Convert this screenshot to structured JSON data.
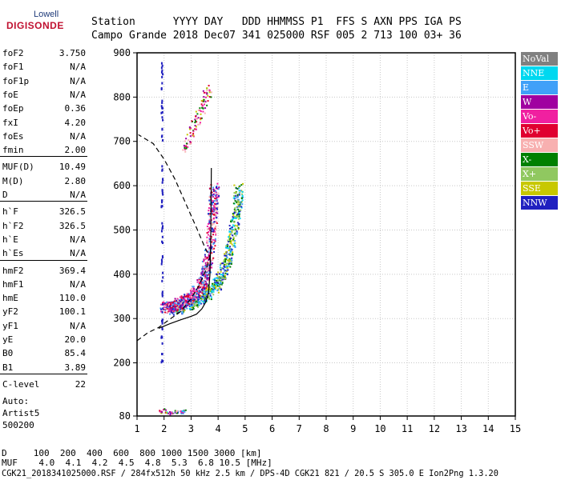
{
  "logo": {
    "top": "Lowell",
    "main": "DIGISONDE"
  },
  "header": {
    "line1": "Station      YYYY DAY   DDD HHMMSS P1  FFS S AXN PPS IGA PS",
    "line2": "Campo Grande 2018 Dec07 341 025000 RSF 005 2 713 100 03+ 36"
  },
  "params": [
    {
      "name": "foF2",
      "value": "3.750"
    },
    {
      "name": "foF1",
      "value": "N/A"
    },
    {
      "name": "foF1p",
      "value": "N/A"
    },
    {
      "name": "foE",
      "value": "N/A"
    },
    {
      "name": "foEp",
      "value": "0.36"
    },
    {
      "name": "fxI",
      "value": "4.20"
    },
    {
      "name": "foEs",
      "value": "N/A"
    },
    {
      "name": "fmin",
      "value": "2.00"
    },
    {
      "name": "MUF(D)",
      "value": "10.49"
    },
    {
      "name": "M(D)",
      "value": "2.80"
    },
    {
      "name": "D",
      "value": "N/A"
    },
    {
      "name": "h`F",
      "value": "326.5"
    },
    {
      "name": "h`F2",
      "value": "326.5"
    },
    {
      "name": "h`E",
      "value": "N/A"
    },
    {
      "name": "h`Es",
      "value": "N/A"
    },
    {
      "name": "hmF2",
      "value": "369.4"
    },
    {
      "name": "hmF1",
      "value": "N/A"
    },
    {
      "name": "hmE",
      "value": "110.0"
    },
    {
      "name": "yF2",
      "value": "100.1"
    },
    {
      "name": "yF1",
      "value": "N/A"
    },
    {
      "name": "yE",
      "value": "20.0"
    },
    {
      "name": "B0",
      "value": "85.4"
    },
    {
      "name": "B1",
      "value": "3.89"
    },
    {
      "name": "C-level",
      "value": "22"
    }
  ],
  "auto": {
    "line1": "Auto:",
    "line2": "Artist5",
    "line3": "500200"
  },
  "legend": [
    {
      "label": "NoVal",
      "color": "#808080"
    },
    {
      "label": "NNE",
      "color": "#00d8f0"
    },
    {
      "label": "E",
      "color": "#40a0f8"
    },
    {
      "label": "W",
      "color": "#a000a0"
    },
    {
      "label": "Vo-",
      "color": "#f020a0"
    },
    {
      "label": "Vo+",
      "color": "#e00030"
    },
    {
      "label": "SSW",
      "color": "#f8b0b0"
    },
    {
      "label": "X-",
      "color": "#008000"
    },
    {
      "label": "X+",
      "color": "#90c860"
    },
    {
      "label": "SSE",
      "color": "#c8c800"
    },
    {
      "label": "NNW",
      "color": "#2020c0"
    }
  ],
  "footer": {
    "line1": "D     100  200  400  600  800 1000 1500 3000 [km]",
    "line2": "MUF    4.0  4.1  4.2  4.5  4.8  5.3  6.8 10.5 [MHz]",
    "line3": "CGK21_2018341025000.RSF / 284fx512h 50 kHz 2.5 km / DPS-4D CGK21 821 / 20.5 S 305.0 E Ion2Png 1.3.20"
  },
  "chart_data": {
    "type": "scatter",
    "xlim": [
      1,
      15
    ],
    "ylim": [
      80,
      900
    ],
    "xticks": [
      1,
      2,
      3,
      4,
      5,
      6,
      7,
      8,
      9,
      10,
      11,
      12,
      13,
      14,
      15
    ],
    "yticks": [
      80,
      200,
      300,
      400,
      500,
      600,
      700,
      800,
      900
    ],
    "grid": true,
    "profile_solid": [
      [
        1.8,
        278
      ],
      [
        2.2,
        288
      ],
      [
        2.6,
        297
      ],
      [
        3.0,
        305
      ],
      [
        3.2,
        310
      ],
      [
        3.4,
        322
      ],
      [
        3.55,
        338
      ],
      [
        3.65,
        360
      ],
      [
        3.7,
        400
      ],
      [
        3.73,
        480
      ],
      [
        3.75,
        640
      ]
    ],
    "profile_dashed": [
      [
        1.0,
        250
      ],
      [
        1.4,
        268
      ],
      [
        1.8,
        280
      ],
      [
        2.2,
        298
      ],
      [
        2.6,
        315
      ],
      [
        3.0,
        345
      ],
      [
        3.3,
        375
      ],
      [
        3.55,
        410
      ],
      [
        3.7,
        440
      ],
      [
        3.55,
        455
      ],
      [
        3.2,
        505
      ],
      [
        2.8,
        560
      ],
      [
        2.4,
        615
      ],
      [
        2.0,
        660
      ],
      [
        1.6,
        695
      ],
      [
        1.05,
        715
      ]
    ],
    "trace_o": [
      [
        2.0,
        325
      ],
      [
        2.2,
        328
      ],
      [
        2.4,
        331
      ],
      [
        2.6,
        336
      ],
      [
        2.8,
        342
      ],
      [
        3.0,
        350
      ],
      [
        3.2,
        362
      ],
      [
        3.4,
        382
      ],
      [
        3.5,
        400
      ],
      [
        3.6,
        428
      ],
      [
        3.7,
        470
      ],
      [
        3.75,
        520
      ],
      [
        3.8,
        560
      ],
      [
        3.85,
        600
      ]
    ],
    "trace_x": [
      [
        2.3,
        322
      ],
      [
        2.6,
        326
      ],
      [
        2.9,
        332
      ],
      [
        3.2,
        340
      ],
      [
        3.5,
        352
      ],
      [
        3.8,
        368
      ],
      [
        4.0,
        385
      ],
      [
        4.2,
        410
      ],
      [
        4.35,
        440
      ],
      [
        4.5,
        480
      ],
      [
        4.6,
        520
      ],
      [
        4.7,
        560
      ],
      [
        4.75,
        600
      ]
    ],
    "oblique_upper": [
      [
        2.7,
        680
      ],
      [
        2.9,
        710
      ],
      [
        3.1,
        740
      ],
      [
        3.3,
        770
      ],
      [
        3.5,
        795
      ],
      [
        3.7,
        820
      ]
    ],
    "vertical_streak": [
      [
        1.9,
        200
      ],
      [
        1.9,
        900
      ]
    ],
    "low_echoes": [
      [
        1.8,
        90
      ],
      [
        2.0,
        95
      ],
      [
        2.2,
        88
      ],
      [
        2.4,
        92
      ],
      [
        2.6,
        90
      ],
      [
        2.8,
        95
      ]
    ]
  }
}
